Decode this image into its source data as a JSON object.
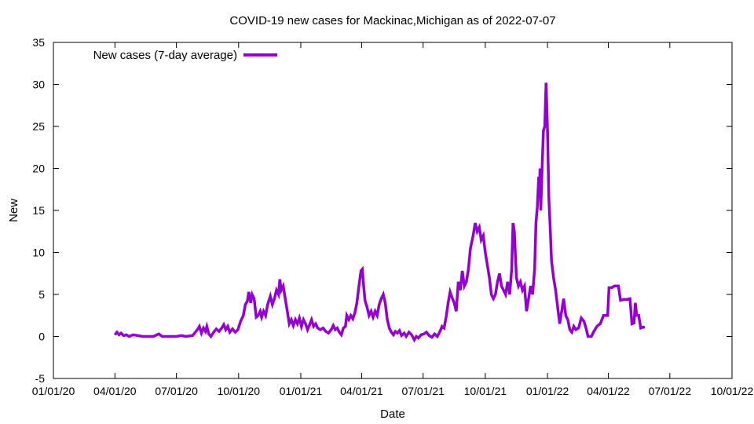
{
  "chart_data": {
    "type": "line",
    "title": "COVID-19 new cases for Mackinac,Michigan as of 2022-07-07",
    "xlabel": "Date",
    "ylabel": "New",
    "ylim": [
      -5,
      35
    ],
    "yticks": [
      -5,
      0,
      5,
      10,
      15,
      20,
      25,
      30,
      35
    ],
    "xlim": [
      "2020-01-01",
      "2022-10-01"
    ],
    "xticks": [
      {
        "date": "2020-01-01",
        "label": "01/01/20"
      },
      {
        "date": "2020-04-01",
        "label": "04/01/20"
      },
      {
        "date": "2020-07-01",
        "label": "07/01/20"
      },
      {
        "date": "2020-10-01",
        "label": "10/01/20"
      },
      {
        "date": "2021-01-01",
        "label": "01/01/21"
      },
      {
        "date": "2021-04-01",
        "label": "04/01/21"
      },
      {
        "date": "2021-07-01",
        "label": "07/01/21"
      },
      {
        "date": "2021-10-01",
        "label": "10/01/21"
      },
      {
        "date": "2022-01-01",
        "label": "01/01/22"
      },
      {
        "date": "2022-04-01",
        "label": "04/01/22"
      },
      {
        "date": "2022-07-01",
        "label": "07/01/22"
      },
      {
        "date": "2022-10-01",
        "label": "10/01/22"
      }
    ],
    "legend": {
      "position": "top-left",
      "label": "New cases (7-day average)"
    },
    "grid": false,
    "series": [
      {
        "name": "New cases (7-day average)",
        "color": "#9400d3",
        "points": [
          [
            "2020-04-01",
            0.2
          ],
          [
            "2020-04-04",
            0.5
          ],
          [
            "2020-04-07",
            0.2
          ],
          [
            "2020-04-10",
            0.4
          ],
          [
            "2020-04-14",
            0.1
          ],
          [
            "2020-04-18",
            0.2
          ],
          [
            "2020-04-22",
            0.0
          ],
          [
            "2020-04-28",
            0.2
          ],
          [
            "2020-05-05",
            0.1
          ],
          [
            "2020-05-12",
            0.0
          ],
          [
            "2020-05-20",
            0.0
          ],
          [
            "2020-05-28",
            0.0
          ],
          [
            "2020-06-05",
            0.3
          ],
          [
            "2020-06-10",
            0.0
          ],
          [
            "2020-06-20",
            0.0
          ],
          [
            "2020-07-01",
            0.0
          ],
          [
            "2020-07-08",
            0.1
          ],
          [
            "2020-07-15",
            0.0
          ],
          [
            "2020-07-25",
            0.1
          ],
          [
            "2020-08-01",
            0.8
          ],
          [
            "2020-08-04",
            1.2
          ],
          [
            "2020-08-07",
            0.4
          ],
          [
            "2020-08-10",
            1.0
          ],
          [
            "2020-08-13",
            0.6
          ],
          [
            "2020-08-15",
            1.2
          ],
          [
            "2020-08-18",
            0.3
          ],
          [
            "2020-08-21",
            0.0
          ],
          [
            "2020-08-25",
            0.5
          ],
          [
            "2020-08-29",
            0.9
          ],
          [
            "2020-09-02",
            0.6
          ],
          [
            "2020-09-06",
            1.0
          ],
          [
            "2020-09-09",
            1.4
          ],
          [
            "2020-09-12",
            0.8
          ],
          [
            "2020-09-15",
            1.2
          ],
          [
            "2020-09-18",
            0.5
          ],
          [
            "2020-09-22",
            0.9
          ],
          [
            "2020-09-26",
            0.5
          ],
          [
            "2020-09-30",
            0.8
          ],
          [
            "2020-10-04",
            1.8
          ],
          [
            "2020-10-08",
            2.5
          ],
          [
            "2020-10-11",
            3.8
          ],
          [
            "2020-10-14",
            4.2
          ],
          [
            "2020-10-16",
            5.3
          ],
          [
            "2020-10-19",
            4.0
          ],
          [
            "2020-10-21",
            5.0
          ],
          [
            "2020-10-24",
            4.5
          ],
          [
            "2020-10-27",
            2.3
          ],
          [
            "2020-10-30",
            2.5
          ],
          [
            "2020-11-02",
            3.0
          ],
          [
            "2020-11-04",
            2.3
          ],
          [
            "2020-11-07",
            3.0
          ],
          [
            "2020-11-10",
            2.5
          ],
          [
            "2020-11-13",
            3.8
          ],
          [
            "2020-11-17",
            4.8
          ],
          [
            "2020-11-20",
            3.8
          ],
          [
            "2020-11-23",
            4.5
          ],
          [
            "2020-11-26",
            5.5
          ],
          [
            "2020-11-29",
            5.0
          ],
          [
            "2020-12-01",
            6.8
          ],
          [
            "2020-12-03",
            5.5
          ],
          [
            "2020-12-06",
            6.0
          ],
          [
            "2020-12-09",
            4.5
          ],
          [
            "2020-12-12",
            3.0
          ],
          [
            "2020-12-15",
            1.5
          ],
          [
            "2020-12-18",
            2.0
          ],
          [
            "2020-12-21",
            1.3
          ],
          [
            "2020-12-24",
            2.0
          ],
          [
            "2020-12-27",
            1.5
          ],
          [
            "2020-12-30",
            2.2
          ],
          [
            "2021-01-02",
            1.2
          ],
          [
            "2021-01-05",
            2.0
          ],
          [
            "2021-01-08",
            1.5
          ],
          [
            "2021-01-11",
            0.8
          ],
          [
            "2021-01-14",
            1.4
          ],
          [
            "2021-01-17",
            2.0
          ],
          [
            "2021-01-20",
            1.2
          ],
          [
            "2021-01-23",
            1.5
          ],
          [
            "2021-01-26",
            1.0
          ],
          [
            "2021-01-30",
            0.8
          ],
          [
            "2021-02-03",
            1.0
          ],
          [
            "2021-02-07",
            0.6
          ],
          [
            "2021-02-11",
            0.4
          ],
          [
            "2021-02-15",
            0.8
          ],
          [
            "2021-02-18",
            1.3
          ],
          [
            "2021-02-21",
            0.8
          ],
          [
            "2021-02-24",
            1.0
          ],
          [
            "2021-02-27",
            0.5
          ],
          [
            "2021-03-02",
            0.2
          ],
          [
            "2021-03-05",
            1.0
          ],
          [
            "2021-03-08",
            1.2
          ],
          [
            "2021-03-10",
            2.5
          ],
          [
            "2021-03-13",
            2.0
          ],
          [
            "2021-03-16",
            2.5
          ],
          [
            "2021-03-19",
            2.1
          ],
          [
            "2021-03-22",
            2.8
          ],
          [
            "2021-03-25",
            4.0
          ],
          [
            "2021-03-28",
            6.0
          ],
          [
            "2021-03-31",
            7.8
          ],
          [
            "2021-04-02",
            8.0
          ],
          [
            "2021-04-04",
            6.0
          ],
          [
            "2021-04-06",
            4.3
          ],
          [
            "2021-04-09",
            3.5
          ],
          [
            "2021-04-12",
            2.5
          ],
          [
            "2021-04-15",
            3.0
          ],
          [
            "2021-04-18",
            2.3
          ],
          [
            "2021-04-21",
            3.0
          ],
          [
            "2021-04-24",
            2.5
          ],
          [
            "2021-04-27",
            3.8
          ],
          [
            "2021-04-30",
            4.5
          ],
          [
            "2021-05-03",
            5.0
          ],
          [
            "2021-05-06",
            4.0
          ],
          [
            "2021-05-09",
            2.0
          ],
          [
            "2021-05-12",
            1.0
          ],
          [
            "2021-05-15",
            0.5
          ],
          [
            "2021-05-18",
            0.2
          ],
          [
            "2021-05-21",
            0.6
          ],
          [
            "2021-05-24",
            0.4
          ],
          [
            "2021-05-27",
            0.7
          ],
          [
            "2021-05-30",
            0.1
          ],
          [
            "2021-06-03",
            0.4
          ],
          [
            "2021-06-06",
            0.0
          ],
          [
            "2021-06-10",
            0.5
          ],
          [
            "2021-06-14",
            0.2
          ],
          [
            "2021-06-18",
            -0.4
          ],
          [
            "2021-06-21",
            0.0
          ],
          [
            "2021-06-24",
            -0.2
          ],
          [
            "2021-06-28",
            0.2
          ],
          [
            "2021-07-02",
            0.3
          ],
          [
            "2021-07-06",
            0.5
          ],
          [
            "2021-07-10",
            0.1
          ],
          [
            "2021-07-14",
            -0.1
          ],
          [
            "2021-07-18",
            0.3
          ],
          [
            "2021-07-22",
            0.0
          ],
          [
            "2021-07-26",
            0.6
          ],
          [
            "2021-07-29",
            1.2
          ],
          [
            "2021-08-01",
            1.0
          ],
          [
            "2021-08-04",
            2.3
          ],
          [
            "2021-08-07",
            4.0
          ],
          [
            "2021-08-10",
            5.3
          ],
          [
            "2021-08-13",
            4.6
          ],
          [
            "2021-08-16",
            4.0
          ],
          [
            "2021-08-19",
            3.0
          ],
          [
            "2021-08-22",
            6.5
          ],
          [
            "2021-08-25",
            5.5
          ],
          [
            "2021-08-28",
            7.8
          ],
          [
            "2021-08-31",
            6.0
          ],
          [
            "2021-09-03",
            6.5
          ],
          [
            "2021-09-06",
            8.0
          ],
          [
            "2021-09-09",
            10.5
          ],
          [
            "2021-09-13",
            12.0
          ],
          [
            "2021-09-16",
            13.5
          ],
          [
            "2021-09-19",
            12.5
          ],
          [
            "2021-09-22",
            13.0
          ],
          [
            "2021-09-25",
            11.5
          ],
          [
            "2021-09-28",
            12.0
          ],
          [
            "2021-10-01",
            10.0
          ],
          [
            "2021-10-04",
            8.5
          ],
          [
            "2021-10-07",
            7.0
          ],
          [
            "2021-10-10",
            5.0
          ],
          [
            "2021-10-13",
            4.5
          ],
          [
            "2021-10-16",
            5.0
          ],
          [
            "2021-10-19",
            6.5
          ],
          [
            "2021-10-22",
            7.5
          ],
          [
            "2021-10-25",
            6.0
          ],
          [
            "2021-10-28",
            5.5
          ],
          [
            "2021-10-31",
            5.0
          ],
          [
            "2021-11-03",
            6.5
          ],
          [
            "2021-11-06",
            5.0
          ],
          [
            "2021-11-09",
            8.0
          ],
          [
            "2021-11-11",
            13.5
          ],
          [
            "2021-11-13",
            12.5
          ],
          [
            "2021-11-16",
            7.0
          ],
          [
            "2021-11-19",
            6.0
          ],
          [
            "2021-11-22",
            6.5
          ],
          [
            "2021-11-25",
            5.5
          ],
          [
            "2021-11-28",
            6.0
          ],
          [
            "2021-12-01",
            3.0
          ],
          [
            "2021-12-04",
            4.5
          ],
          [
            "2021-12-07",
            6.0
          ],
          [
            "2021-12-10",
            5.0
          ],
          [
            "2021-12-13",
            8.0
          ],
          [
            "2021-12-15",
            13.5
          ],
          [
            "2021-12-17",
            15.5
          ],
          [
            "2021-12-19",
            19.0
          ],
          [
            "2021-12-20",
            17.0
          ],
          [
            "2021-12-21",
            20.0
          ],
          [
            "2021-12-22",
            15.0
          ],
          [
            "2021-12-24",
            20.0
          ],
          [
            "2021-12-26",
            24.5
          ],
          [
            "2021-12-28",
            25.0
          ],
          [
            "2021-12-30",
            30.2
          ],
          [
            "2022-01-01",
            24.5
          ],
          [
            "2022-01-03",
            16.5
          ],
          [
            "2022-01-05",
            13.0
          ],
          [
            "2022-01-07",
            9.0
          ],
          [
            "2022-01-10",
            7.0
          ],
          [
            "2022-01-13",
            5.5
          ],
          [
            "2022-01-16",
            3.5
          ],
          [
            "2022-01-19",
            1.5
          ],
          [
            "2022-01-22",
            3.0
          ],
          [
            "2022-01-25",
            4.5
          ],
          [
            "2022-01-28",
            2.5
          ],
          [
            "2022-01-31",
            2.0
          ],
          [
            "2022-02-03",
            0.8
          ],
          [
            "2022-02-06",
            0.5
          ],
          [
            "2022-02-09",
            1.2
          ],
          [
            "2022-02-12",
            0.8
          ],
          [
            "2022-02-16",
            1.0
          ],
          [
            "2022-02-20",
            2.2
          ],
          [
            "2022-02-24",
            1.8
          ],
          [
            "2022-02-27",
            1.0
          ],
          [
            "2022-03-02",
            0.0
          ],
          [
            "2022-03-07",
            0.0
          ],
          [
            "2022-03-10",
            0.5
          ],
          [
            "2022-03-15",
            1.2
          ],
          [
            "2022-03-20",
            1.5
          ],
          [
            "2022-03-25",
            2.5
          ],
          [
            "2022-03-31",
            2.5
          ],
          [
            "2022-04-02",
            5.8
          ],
          [
            "2022-04-06",
            5.8
          ],
          [
            "2022-04-10",
            6.0
          ],
          [
            "2022-04-16",
            6.0
          ],
          [
            "2022-04-19",
            4.3
          ],
          [
            "2022-04-24",
            4.4
          ],
          [
            "2022-04-28",
            4.4
          ],
          [
            "2022-05-03",
            4.5
          ],
          [
            "2022-05-06",
            1.5
          ],
          [
            "2022-05-09",
            1.6
          ],
          [
            "2022-05-11",
            4.0
          ],
          [
            "2022-05-13",
            2.5
          ],
          [
            "2022-05-16",
            2.5
          ],
          [
            "2022-05-19",
            1.0
          ],
          [
            "2022-05-22",
            1.1
          ],
          [
            "2022-05-25",
            1.1
          ]
        ]
      }
    ]
  }
}
